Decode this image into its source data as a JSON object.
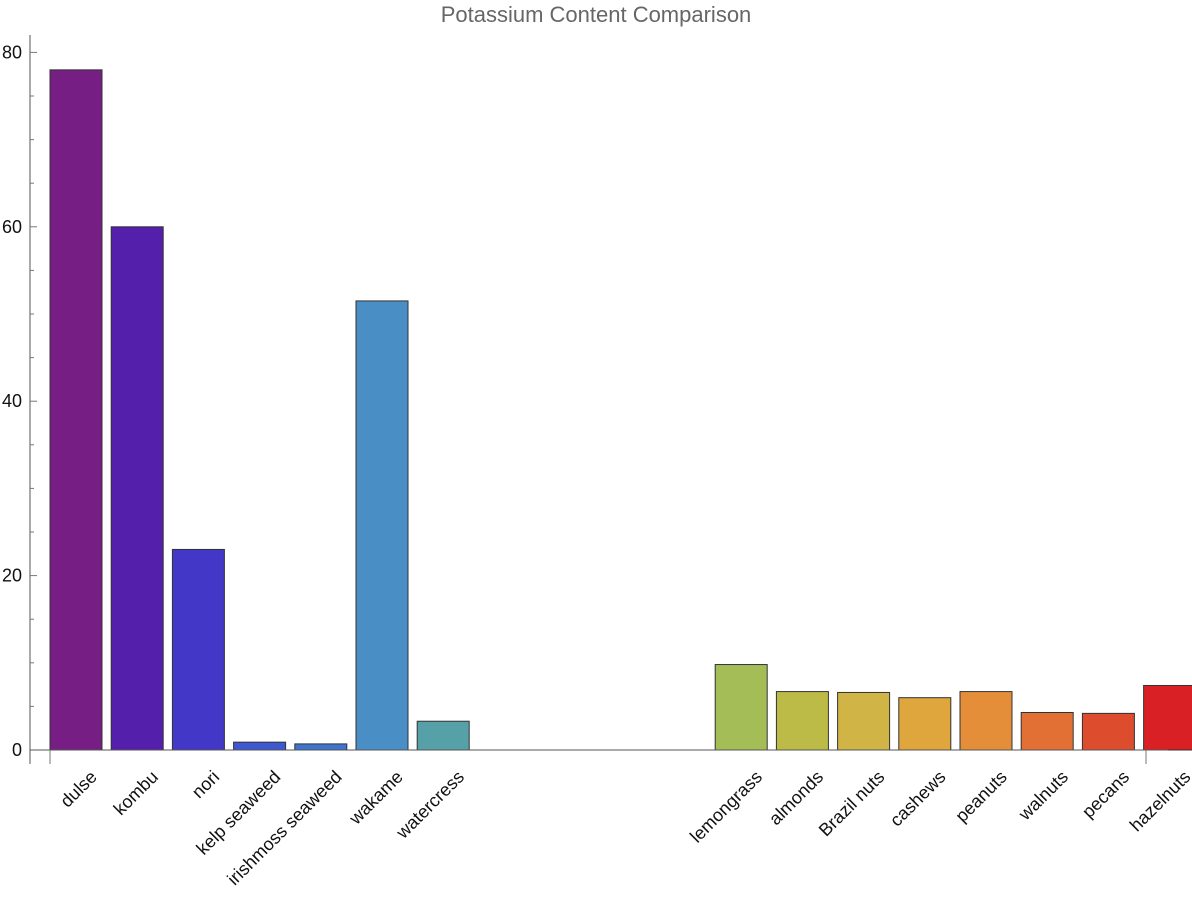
{
  "chart_data": {
    "type": "bar",
    "title": "Potassium Content Comparison",
    "xlabel": "",
    "ylabel": "",
    "ylim": [
      0,
      82
    ],
    "yticks": [
      0,
      20,
      40,
      60,
      80
    ],
    "grid": false,
    "groups": [
      {
        "categories": [
          "dulse",
          "kombu",
          "nori",
          "kelp seaweed",
          "irishmoss seaweed",
          "wakame",
          "watercress"
        ],
        "values": [
          78,
          60,
          23,
          0.9,
          0.7,
          51.5,
          3.3
        ],
        "colors": [
          "#771e84",
          "#531fab",
          "#4237c6",
          "#3d58d1",
          "#3e74d0",
          "#4a8ec6",
          "#56a1a8"
        ]
      },
      {
        "categories": [
          "lemongrass",
          "almonds",
          "Brazil nuts",
          "cashews",
          "peanuts",
          "walnuts",
          "pecans",
          "hazelnuts"
        ],
        "values": [
          9.8,
          6.7,
          6.6,
          6.0,
          6.7,
          4.3,
          4.2,
          7.4
        ],
        "colors": [
          "#a4bd57",
          "#bdbb48",
          "#d0b445",
          "#dfa63e",
          "#e58e39",
          "#e27035",
          "#dd4c2d",
          "#d92125"
        ]
      }
    ]
  }
}
